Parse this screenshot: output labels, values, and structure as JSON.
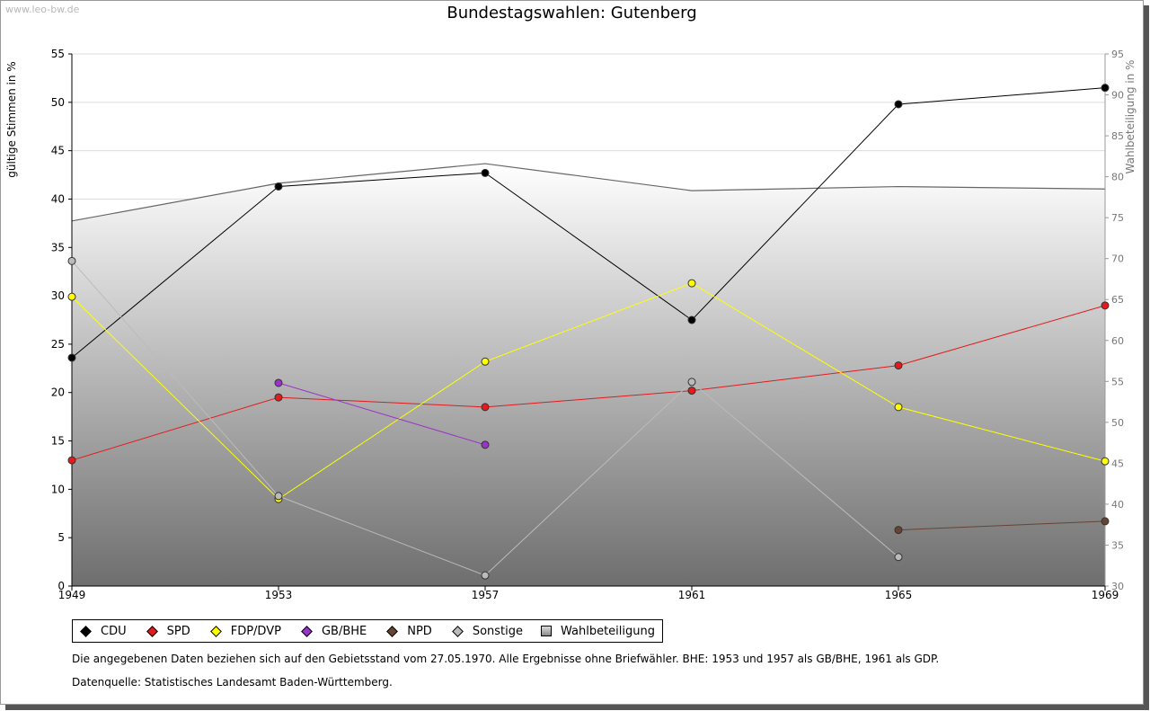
{
  "watermark": "www.leo-bw.de",
  "chart_data": {
    "type": "line",
    "title": "Bundestagswahlen: Gutenberg",
    "ylabel": "gültige Stimmen in %",
    "y2label": "Wahlbeteiligung in %",
    "ylim": [
      0,
      55
    ],
    "y2lim": [
      30,
      95
    ],
    "yticks": [
      "0",
      "5",
      "10",
      "15",
      "20",
      "25",
      "30",
      "35",
      "40",
      "45",
      "50",
      "55"
    ],
    "y2ticks": [
      "30",
      "35",
      "40",
      "45",
      "50",
      "55",
      "60",
      "65",
      "70",
      "75",
      "80",
      "85",
      "90",
      "95"
    ],
    "categories": [
      "1949",
      "1953",
      "1957",
      "1961",
      "1965",
      "1969"
    ],
    "series": [
      {
        "name": "CDU",
        "color": "#000000",
        "values": [
          23.6,
          41.3,
          42.7,
          27.5,
          49.8,
          51.5
        ]
      },
      {
        "name": "SPD",
        "color": "#e41a1c",
        "values": [
          13.0,
          19.5,
          18.5,
          20.2,
          22.8,
          29.0
        ]
      },
      {
        "name": "FDP/DVP",
        "color": "#ffff00",
        "values": [
          29.9,
          9.0,
          23.2,
          31.3,
          18.5,
          12.9
        ]
      },
      {
        "name": "GB/BHE",
        "color": "#9933cc",
        "values": [
          null,
          21.0,
          14.6,
          null,
          null,
          null
        ]
      },
      {
        "name": "NPD",
        "color": "#664433",
        "values": [
          null,
          null,
          null,
          null,
          5.8,
          6.7
        ]
      },
      {
        "name": "Sonstige",
        "color": "#bbbbbb",
        "values": [
          33.6,
          9.3,
          1.1,
          21.1,
          3.0,
          null
        ]
      }
    ],
    "turnout": {
      "name": "Wahlbeteiligung",
      "values": [
        74.6,
        79.2,
        81.6,
        78.3,
        78.8,
        78.5
      ]
    }
  },
  "legend": {
    "items": [
      {
        "label": "CDU",
        "color": "#000000"
      },
      {
        "label": "SPD",
        "color": "#e41a1c"
      },
      {
        "label": "FDP/DVP",
        "color": "#ffff00"
      },
      {
        "label": "GB/BHE",
        "color": "#9933cc"
      },
      {
        "label": "NPD",
        "color": "#664433"
      },
      {
        "label": "Sonstige",
        "color": "#bbbbbb"
      }
    ],
    "turnout_label": "Wahlbeteiligung"
  },
  "notes": {
    "line1": "Die angegebenen Daten beziehen sich auf den Gebietsstand vom 27.05.1970. Alle Ergebnisse ohne Briefwähler. BHE: 1953 und 1957 als GB/BHE, 1961 als GDP.",
    "line2": "Datenquelle: Statistisches Landesamt Baden-Württemberg."
  }
}
